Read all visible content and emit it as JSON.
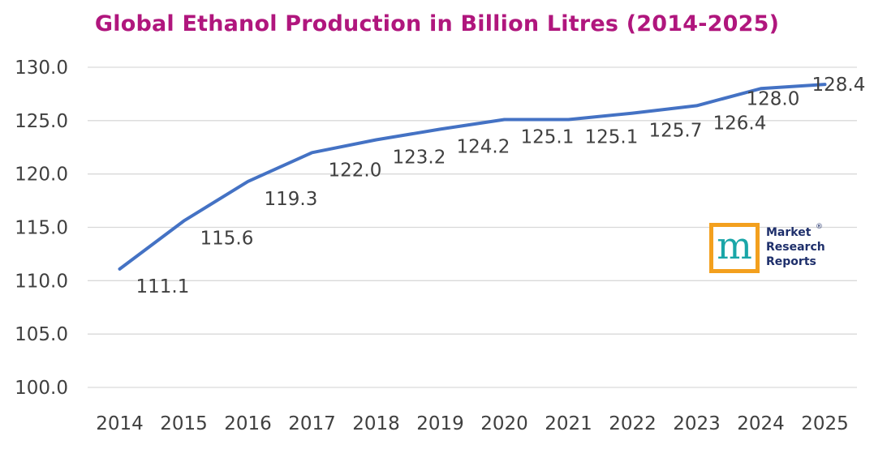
{
  "chart_data": {
    "type": "line",
    "title": "Global Ethanol Production in Billion Litres (2014-2025)",
    "xlabel": "",
    "ylabel": "",
    "categories": [
      "2014",
      "2015",
      "2016",
      "2017",
      "2018",
      "2019",
      "2020",
      "2021",
      "2022",
      "2023",
      "2024",
      "2025"
    ],
    "values": [
      111.1,
      115.6,
      119.3,
      122.0,
      123.2,
      124.2,
      125.1,
      125.1,
      125.7,
      126.4,
      128.0,
      128.4
    ],
    "value_labels": [
      "111.1",
      "115.6",
      "119.3",
      "122.0",
      "123.2",
      "124.2",
      "125.1",
      "125.1",
      "125.7",
      "126.4",
      "128.0",
      "128.4"
    ],
    "ylim": [
      100,
      130
    ],
    "yticks": [
      "100.0",
      "105.0",
      "110.0",
      "115.0",
      "120.0",
      "125.0",
      "130.0"
    ],
    "grid": true,
    "legend": "none"
  },
  "colors": {
    "title": "#b0167d",
    "line": "#4472c4",
    "grid": "#d9d9d9",
    "text": "#404040",
    "logo_orange": "#f3a01e",
    "logo_teal": "#1aa6a8"
  },
  "logo": {
    "glyph": "m",
    "lines": [
      "Market",
      "Research",
      "Reports"
    ],
    "registered": "®"
  }
}
